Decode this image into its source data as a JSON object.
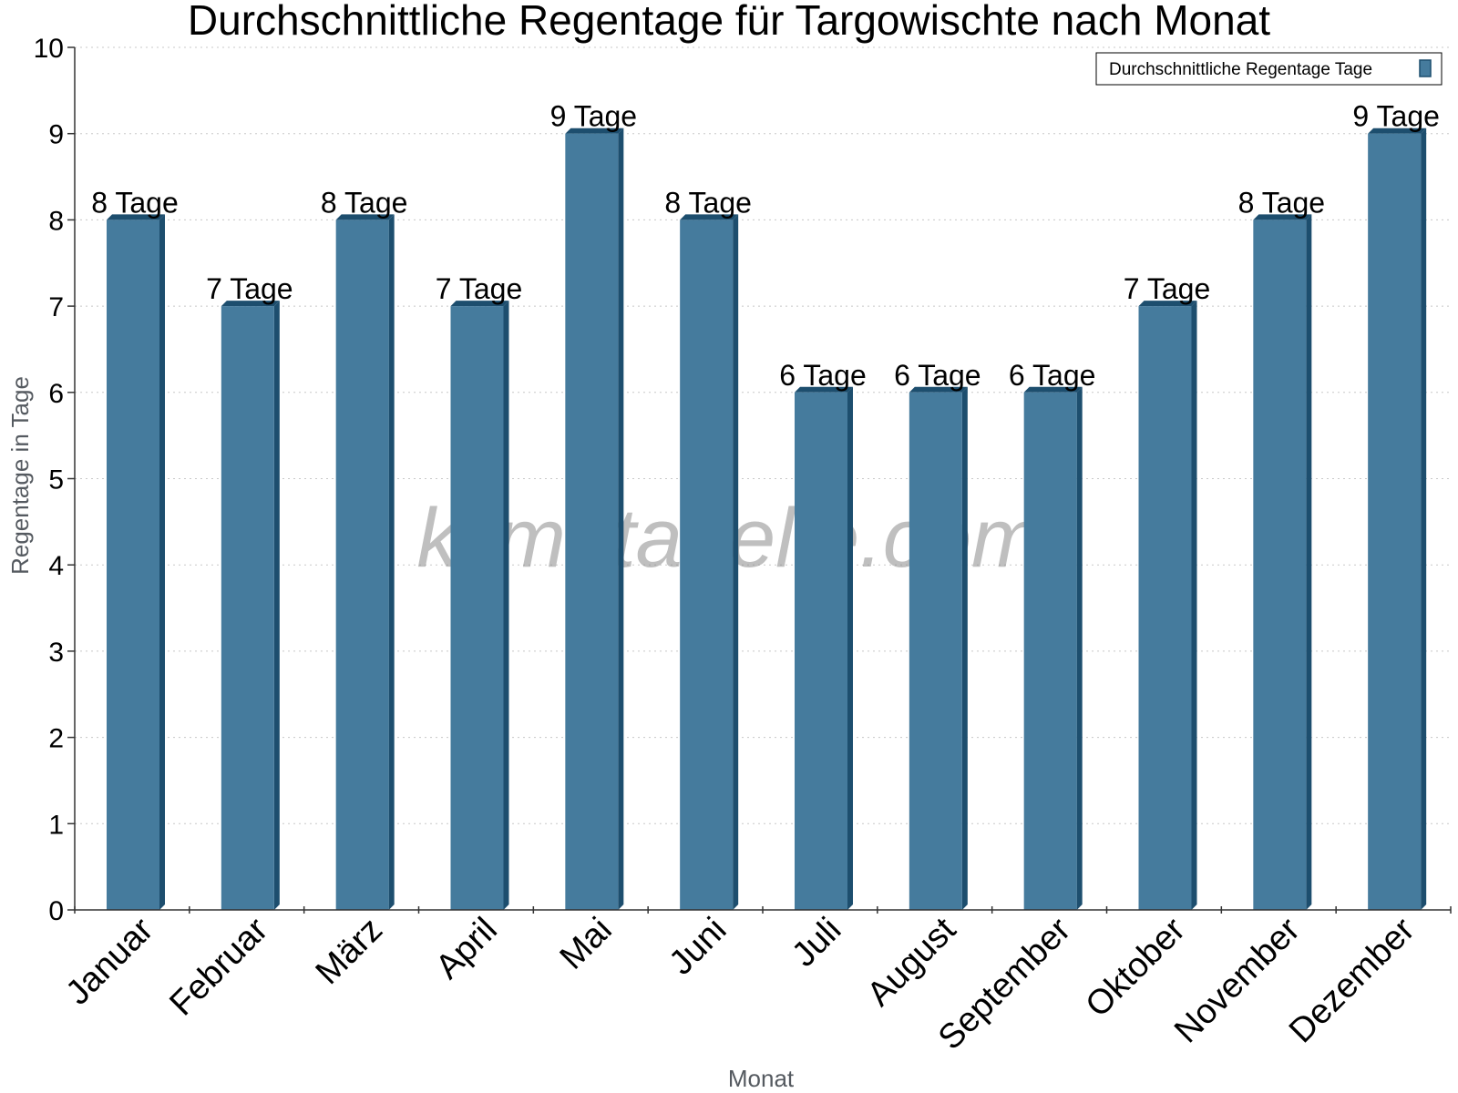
{
  "chart_data": {
    "type": "bar",
    "title": "Durchschnittliche Regentage für Targowischte nach Monat",
    "xlabel": "Monat",
    "ylabel": "Regentage in Tage",
    "ylim": [
      0,
      10
    ],
    "yticks": [
      0,
      1,
      2,
      3,
      4,
      5,
      6,
      7,
      8,
      9,
      10
    ],
    "grid": true,
    "legend_position": "top-right",
    "categories": [
      "Januar",
      "Februar",
      "März",
      "April",
      "Mai",
      "Juni",
      "Juli",
      "August",
      "September",
      "Oktober",
      "November",
      "Dezember"
    ],
    "series": [
      {
        "name": "Durchschnittliche Regentage Tage",
        "values": [
          8,
          7,
          8,
          7,
          9,
          8,
          6,
          6,
          6,
          7,
          8,
          9
        ],
        "labels": [
          "8 Tage",
          "7 Tage",
          "8 Tage",
          "7 Tage",
          "9 Tage",
          "8 Tage",
          "6 Tage",
          "6 Tage",
          "6 Tage",
          "7 Tage",
          "8 Tage",
          "9 Tage"
        ]
      }
    ],
    "colors": {
      "bar": "#457b9d",
      "bar_side": "#1d4e6e",
      "bar_top": "#1d4e6e"
    },
    "watermark": "klimatabelle.com"
  }
}
